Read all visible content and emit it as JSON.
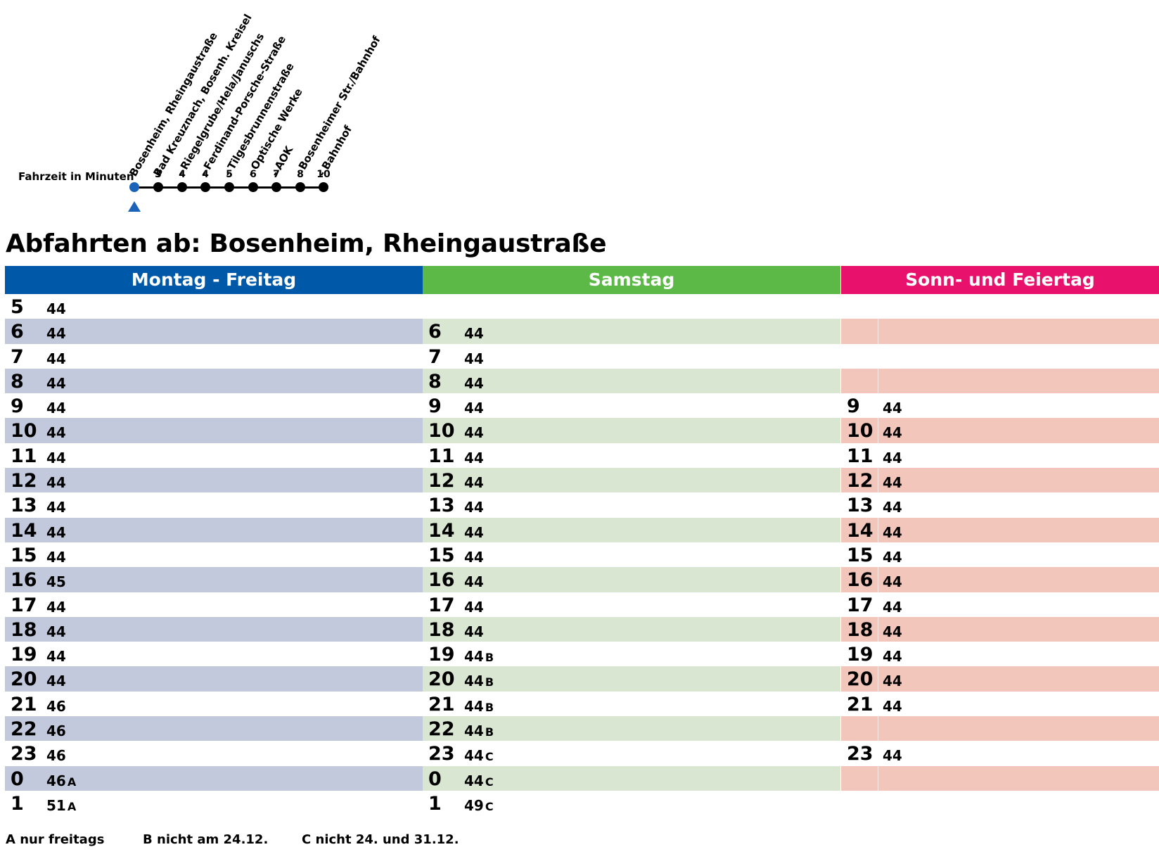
{
  "route": {
    "fahrzeit_label": "Fahrzeit in Minuten",
    "stops": [
      {
        "name": "Bosenheim, Rheingaustraße",
        "time": ""
      },
      {
        "name": "Bad Kreuznach, Bosenh. Kreisel",
        "time": "3"
      },
      {
        "name": "- Riegelgrube/Hela/Januschs",
        "time": "4"
      },
      {
        "name": "- Ferdinand-Porsche-Straße",
        "time": "4"
      },
      {
        "name": "- Tilgesbrunnenstraße",
        "time": "5"
      },
      {
        "name": "- Optische Werke",
        "time": "6"
      },
      {
        "name": "- AOK",
        "time": "7"
      },
      {
        "name": "- Bosenheimer Str./Bahnhof",
        "time": "8"
      },
      {
        "name": "- Bahnhof",
        "time": "10"
      }
    ]
  },
  "title": "Abfahrten ab: Bosenheim, Rheingaustraße",
  "columns": [
    {
      "header": "Montag - Freitag",
      "rows": [
        {
          "hour": "5",
          "minute": "44",
          "note": ""
        },
        {
          "hour": "6",
          "minute": "44",
          "note": ""
        },
        {
          "hour": "7",
          "minute": "44",
          "note": ""
        },
        {
          "hour": "8",
          "minute": "44",
          "note": ""
        },
        {
          "hour": "9",
          "minute": "44",
          "note": ""
        },
        {
          "hour": "10",
          "minute": "44",
          "note": ""
        },
        {
          "hour": "11",
          "minute": "44",
          "note": ""
        },
        {
          "hour": "12",
          "minute": "44",
          "note": ""
        },
        {
          "hour": "13",
          "minute": "44",
          "note": ""
        },
        {
          "hour": "14",
          "minute": "44",
          "note": ""
        },
        {
          "hour": "15",
          "minute": "44",
          "note": ""
        },
        {
          "hour": "16",
          "minute": "45",
          "note": ""
        },
        {
          "hour": "17",
          "minute": "44",
          "note": ""
        },
        {
          "hour": "18",
          "minute": "44",
          "note": ""
        },
        {
          "hour": "19",
          "minute": "44",
          "note": ""
        },
        {
          "hour": "20",
          "minute": "44",
          "note": ""
        },
        {
          "hour": "21",
          "minute": "46",
          "note": ""
        },
        {
          "hour": "22",
          "minute": "46",
          "note": ""
        },
        {
          "hour": "23",
          "minute": "46",
          "note": ""
        },
        {
          "hour": "0",
          "minute": "46",
          "note": "A"
        },
        {
          "hour": "1",
          "minute": "51",
          "note": "A"
        }
      ]
    },
    {
      "header": "Samstag",
      "rows": [
        {
          "hour": "",
          "minute": "",
          "note": ""
        },
        {
          "hour": "6",
          "minute": "44",
          "note": ""
        },
        {
          "hour": "7",
          "minute": "44",
          "note": ""
        },
        {
          "hour": "8",
          "minute": "44",
          "note": ""
        },
        {
          "hour": "9",
          "minute": "44",
          "note": ""
        },
        {
          "hour": "10",
          "minute": "44",
          "note": ""
        },
        {
          "hour": "11",
          "minute": "44",
          "note": ""
        },
        {
          "hour": "12",
          "minute": "44",
          "note": ""
        },
        {
          "hour": "13",
          "minute": "44",
          "note": ""
        },
        {
          "hour": "14",
          "minute": "44",
          "note": ""
        },
        {
          "hour": "15",
          "minute": "44",
          "note": ""
        },
        {
          "hour": "16",
          "minute": "44",
          "note": ""
        },
        {
          "hour": "17",
          "minute": "44",
          "note": ""
        },
        {
          "hour": "18",
          "minute": "44",
          "note": ""
        },
        {
          "hour": "19",
          "minute": "44",
          "note": "B"
        },
        {
          "hour": "20",
          "minute": "44",
          "note": "B"
        },
        {
          "hour": "21",
          "minute": "44",
          "note": "B"
        },
        {
          "hour": "22",
          "minute": "44",
          "note": "B"
        },
        {
          "hour": "23",
          "minute": "44",
          "note": "C"
        },
        {
          "hour": "0",
          "minute": "44",
          "note": "C"
        },
        {
          "hour": "1",
          "minute": "49",
          "note": "C"
        }
      ]
    },
    {
      "header": "Sonn- und Feiertag",
      "rows": [
        {
          "hour": "",
          "minute": "",
          "note": ""
        },
        {
          "hour": "",
          "minute": "",
          "note": ""
        },
        {
          "hour": "",
          "minute": "",
          "note": ""
        },
        {
          "hour": "",
          "minute": "",
          "note": ""
        },
        {
          "hour": "9",
          "minute": "44",
          "note": ""
        },
        {
          "hour": "10",
          "minute": "44",
          "note": ""
        },
        {
          "hour": "11",
          "minute": "44",
          "note": ""
        },
        {
          "hour": "12",
          "minute": "44",
          "note": ""
        },
        {
          "hour": "13",
          "minute": "44",
          "note": ""
        },
        {
          "hour": "14",
          "minute": "44",
          "note": ""
        },
        {
          "hour": "15",
          "minute": "44",
          "note": ""
        },
        {
          "hour": "16",
          "minute": "44",
          "note": ""
        },
        {
          "hour": "17",
          "minute": "44",
          "note": ""
        },
        {
          "hour": "18",
          "minute": "44",
          "note": ""
        },
        {
          "hour": "19",
          "minute": "44",
          "note": ""
        },
        {
          "hour": "20",
          "minute": "44",
          "note": ""
        },
        {
          "hour": "21",
          "minute": "44",
          "note": ""
        },
        {
          "hour": "",
          "minute": "",
          "note": ""
        },
        {
          "hour": "23",
          "minute": "44",
          "note": ""
        },
        {
          "hour": "",
          "minute": "",
          "note": ""
        },
        {
          "hour": "",
          "minute": "",
          "note": ""
        }
      ]
    }
  ],
  "footnotes": [
    {
      "key": "A",
      "text": "nur freitags"
    },
    {
      "key": "B",
      "text": "nicht am 24.12."
    },
    {
      "key": "C",
      "text": "nicht 24. und 31.12."
    }
  ],
  "colors": {
    "weekday": "#0058a8",
    "saturday": "#5cb948",
    "sunday": "#e8126c",
    "origin_stop": "#1a63b8"
  }
}
